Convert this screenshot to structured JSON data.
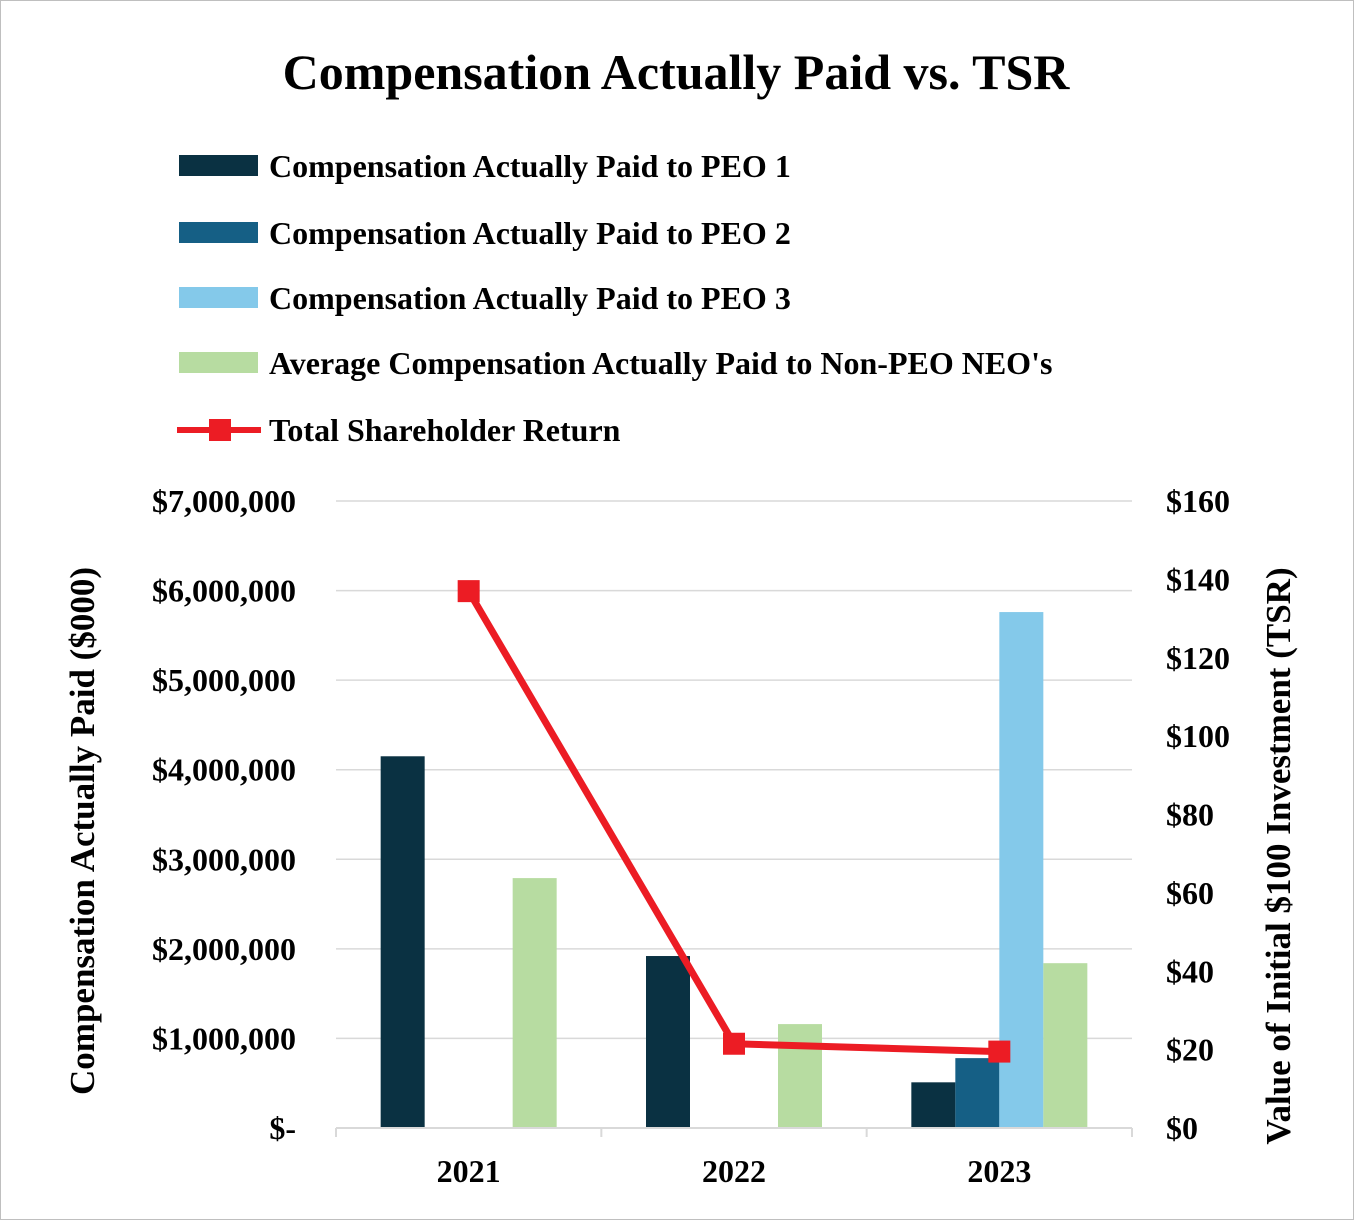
{
  "chart_data": {
    "type": "bar",
    "title": "Compensation Actually Paid vs. TSR",
    "categories": [
      "2021",
      "2022",
      "2023"
    ],
    "series": [
      {
        "name": "Compensation Actually Paid to PEO 1",
        "color": "#0a3142",
        "values": [
          4150000,
          1920000,
          510000
        ]
      },
      {
        "name": "Compensation Actually Paid to PEO 2",
        "color": "#155f85",
        "values": [
          0,
          0,
          780000
        ]
      },
      {
        "name": "Compensation Actually Paid to PEO 3",
        "color": "#84c9ea",
        "values": [
          0,
          0,
          5760000
        ]
      },
      {
        "name": "Average Compensation Actually Paid to Non-PEO NEO's",
        "color": "#b7dca1",
        "values": [
          2790000,
          1160000,
          1840000
        ]
      }
    ],
    "line_series": {
      "name": "Total Shareholder Return",
      "color": "#ec1c24",
      "axis": "right",
      "values": [
        137,
        21.5,
        19.5
      ]
    },
    "ylabel": "Compensation Actually Paid ($000)",
    "y2label": "Value of Initial $100 Investment (TSR)",
    "ylim": [
      0,
      7000000
    ],
    "y2lim": [
      0,
      160
    ],
    "yticks": [
      0,
      1000000,
      2000000,
      3000000,
      4000000,
      5000000,
      6000000,
      7000000
    ],
    "ytick_labels": [
      "$-",
      "$1,000,000",
      "$2,000,000",
      "$3,000,000",
      "$4,000,000",
      "$5,000,000",
      "$6,000,000",
      "$7,000,000"
    ],
    "y2ticks": [
      0,
      20,
      40,
      60,
      80,
      100,
      120,
      140,
      160
    ],
    "y2tick_labels": [
      "$0",
      "$20",
      "$40",
      "$60",
      "$80",
      "$100",
      "$120",
      "$140",
      "$160"
    ],
    "grid": true,
    "legend_position": "top"
  }
}
